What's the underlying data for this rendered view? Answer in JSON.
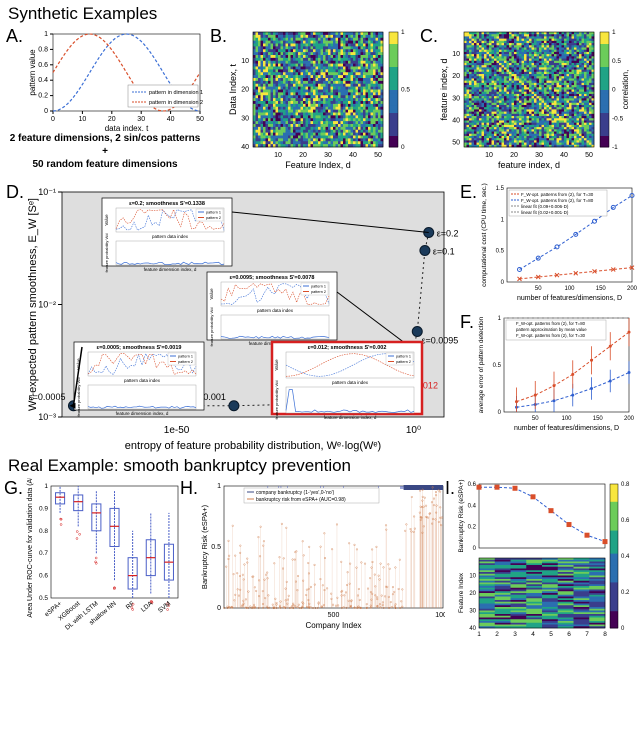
{
  "sections": {
    "synthetic": "Synthetic Examples",
    "real": "Real Example: smooth bankruptcy prevention"
  },
  "panelA": {
    "label": "A.",
    "xlabel": "data index, t",
    "ylabel": "pattern value",
    "legend": [
      "pattern in dimension 1",
      "pattern in dimension 2"
    ],
    "caption_l1": "2 feature dimensions,  2 sin/cos patterns",
    "caption_plus": "+",
    "caption_l2": "50 random feature dimensions",
    "xlim": [
      0,
      50
    ],
    "ylim": [
      0,
      1
    ],
    "xticks": [
      0,
      10,
      20,
      30,
      40,
      50
    ],
    "yticks": [
      0,
      0.2,
      0.4,
      0.6,
      0.8,
      1
    ],
    "colors": {
      "p1": "#3b6fd6",
      "p2": "#d94e2a"
    }
  },
  "panelB": {
    "label": "B.",
    "xlabel": "Feature Index, d",
    "ylabel": "Data Index, t",
    "xticks": [
      10,
      20,
      30,
      40,
      50
    ],
    "yticks": [
      10,
      20,
      30,
      40
    ],
    "grid": [
      52,
      40
    ],
    "cmap": [
      "#3a3e8c",
      "#2b6fb0",
      "#3eb7a8",
      "#8bd14a",
      "#f8e63e"
    ],
    "cticks": [
      0,
      0.5,
      1
    ]
  },
  "panelC": {
    "label": "C.",
    "xlabel": "feature index, d",
    "ylabel": "feature index, d",
    "xticks": [
      10,
      20,
      30,
      40,
      50
    ],
    "yticks": [
      10,
      20,
      30,
      40,
      50
    ],
    "grid": [
      52,
      52
    ],
    "cmap": [
      "#3a3e8c",
      "#2b6fb0",
      "#3eb7a8",
      "#8bd14a",
      "#f8e63e"
    ],
    "cticks": [
      -1,
      -0.5,
      0,
      0.5,
      1
    ],
    "clabel": "correlation,"
  },
  "panelD": {
    "label": "D.",
    "xlabel": "entropy of feature probability distribution, Wᵉ·log(Wᵉ)",
    "ylabel": "Wᵉ-expected pattern smoothness, E_W [Sᵉ]",
    "ylim_exp": [
      -3,
      -1
    ],
    "xticks": [
      "1e-50",
      "10⁰"
    ],
    "yticks": [
      "10⁻³",
      "10⁻²",
      "10⁻¹"
    ],
    "points": [
      {
        "x": 0.96,
        "y": 0.82,
        "eps": "ε=0.2"
      },
      {
        "x": 0.95,
        "y": 0.74,
        "eps": "ε=0.1"
      },
      {
        "x": 0.93,
        "y": 0.38,
        "eps": ""
      },
      {
        "x": 0.92,
        "y": 0.3,
        "eps": "ε=0.0095"
      },
      {
        "x": 0.88,
        "y": 0.1,
        "eps": "ε=0.012",
        "red": true
      },
      {
        "x": 0.7,
        "y": 0.06,
        "eps": "ε=0.003"
      },
      {
        "x": 0.45,
        "y": 0.05,
        "eps": "ε=0.001"
      },
      {
        "x": 0.03,
        "y": 0.05,
        "eps": "ε=0.0005"
      }
    ],
    "insets": [
      {
        "title": "ε=0.2; smoothness S'=0.1338"
      },
      {
        "title": "ε=0.0095; smoothness S'=0.0078"
      },
      {
        "title": "ε=0.0005; smoothness S'=0.0019"
      },
      {
        "title": "ε=0.012; smoothness S'=0.002",
        "red": true
      }
    ],
    "inset_axes": {
      "top_x": "pattern data index",
      "bot_x": "feature dimension index, d",
      "top_y": "Value",
      "bot_y": "feature probability Wd",
      "legend": [
        "pattern 1",
        "pattern 2"
      ]
    },
    "bg": "#dedede"
  },
  "panelE": {
    "label": "E.",
    "xlabel": "number of features/dimensions, D",
    "ylabel": "computational cost (CPU time, sec.)",
    "xlim": [
      0,
      200
    ],
    "ylim": [
      0,
      1.5
    ],
    "xticks": [
      50,
      100,
      150,
      200
    ],
    "yticks": [
      0,
      0.5,
      1,
      1.5
    ],
    "legend": [
      "F_W-opt. patterns from (2), for T=30",
      "F_W-opt. patterns from (2), for T=80",
      "linear fit (0.09+0.006·D)",
      "linear fit (0.02+0.001·D)"
    ],
    "series": [
      {
        "color": "#2f5fd0",
        "marker": "o",
        "x": [
          20,
          50,
          80,
          110,
          140,
          170,
          200
        ],
        "y": [
          0.2,
          0.38,
          0.56,
          0.76,
          0.97,
          1.19,
          1.38
        ]
      },
      {
        "color": "#d94e2a",
        "marker": "x",
        "x": [
          20,
          50,
          80,
          110,
          140,
          170,
          200
        ],
        "y": [
          0.05,
          0.08,
          0.11,
          0.14,
          0.17,
          0.2,
          0.23
        ]
      }
    ]
  },
  "panelF": {
    "label": "F.",
    "xlabel": "number of features/dimensions, D",
    "ylabel": "average error of pattern detection",
    "xlim": [
      0,
      200
    ],
    "ylim": [
      0,
      1
    ],
    "xticks": [
      50,
      100,
      150,
      200
    ],
    "yticks": [
      0,
      0.5,
      1
    ],
    "legend": [
      "F_W-opt. patterns from (2), for T=80",
      "pattern approximation by mean value",
      "F_W-opt. patterns from (2), for T=30"
    ],
    "series": [
      {
        "color": "#2f5fd0",
        "x": [
          20,
          50,
          80,
          110,
          140,
          170,
          200
        ],
        "y": [
          0.05,
          0.08,
          0.12,
          0.18,
          0.25,
          0.33,
          0.42
        ],
        "err": 0.12
      },
      {
        "color": "#d94e2a",
        "x": [
          20,
          50,
          80,
          110,
          140,
          170,
          200
        ],
        "y": [
          0.11,
          0.18,
          0.28,
          0.4,
          0.55,
          0.7,
          0.85
        ],
        "err": 0.15
      }
    ],
    "baseline": 1.0
  },
  "panelG": {
    "label": "G.",
    "ylabel": "Area Under ROC-curve for validation data (AUC)",
    "ylim": [
      0.5,
      1.0
    ],
    "yticks": [
      0.5,
      0.6,
      0.7,
      0.8,
      0.9,
      1
    ],
    "cats": [
      "eSPA+",
      "XGBoost",
      "DL with LSTM",
      "shallow NN",
      "RF",
      "LDA",
      "SVM"
    ],
    "boxes": [
      {
        "q1": 0.92,
        "med": 0.95,
        "q3": 0.97,
        "lo": 0.88,
        "hi": 1.0
      },
      {
        "q1": 0.89,
        "med": 0.93,
        "q3": 0.96,
        "lo": 0.82,
        "hi": 1.0
      },
      {
        "q1": 0.8,
        "med": 0.88,
        "q3": 0.92,
        "lo": 0.7,
        "hi": 0.98
      },
      {
        "q1": 0.73,
        "med": 0.82,
        "q3": 0.9,
        "lo": 0.58,
        "hi": 0.98
      },
      {
        "q1": 0.54,
        "med": 0.6,
        "q3": 0.68,
        "lo": 0.5,
        "hi": 0.8
      },
      {
        "q1": 0.6,
        "med": 0.68,
        "q3": 0.76,
        "lo": 0.52,
        "hi": 0.88
      },
      {
        "q1": 0.58,
        "med": 0.66,
        "q3": 0.74,
        "lo": 0.5,
        "hi": 0.88
      }
    ],
    "box_color": "#4a5fc7"
  },
  "panelH": {
    "label": "H.",
    "xlabel": "Company Index",
    "ylabel": "Bankruptcy Risk (eSPA+)",
    "xlim": [
      0,
      1000
    ],
    "ylim": [
      0,
      1
    ],
    "xticks": [
      500,
      1000
    ],
    "yticks": [
      0,
      0.5,
      1
    ],
    "legend": [
      "company bankruptcy (1-'yes',0-'no')",
      "bankruptcy risk from eSPA+ (AUC=0.98)"
    ],
    "n_scatter": 300,
    "scatter_color": "#d08050",
    "bar_color": "#3a4884"
  },
  "panelI": {
    "label": "I.",
    "top": {
      "ylabel": "Bankruptcy Risk (eSPA+)",
      "ylim": [
        0,
        0.6
      ],
      "yticks": [
        0,
        0.2,
        0.4,
        0.6
      ],
      "x": [
        1,
        2,
        3,
        4,
        5,
        6,
        7,
        8
      ],
      "y": [
        0.57,
        0.57,
        0.56,
        0.48,
        0.35,
        0.22,
        0.12,
        0.06
      ],
      "color": "#2f5fd0",
      "marker_color": "#d94e2a"
    },
    "bot": {
      "ylabel": "Feature Index",
      "xlabel": "Step",
      "yticks": [
        10,
        20,
        30,
        40
      ],
      "xticks": [
        1,
        2,
        3,
        4,
        5,
        6,
        7,
        8
      ],
      "cticks": [
        0,
        0.2,
        0.4,
        0.6,
        0.8
      ],
      "rows": 40,
      "cols": 8
    }
  },
  "colors": {
    "viridis": [
      "#440154",
      "#3a3e8c",
      "#2b6fb0",
      "#20a386",
      "#6ccc5a",
      "#f8e63e"
    ]
  }
}
